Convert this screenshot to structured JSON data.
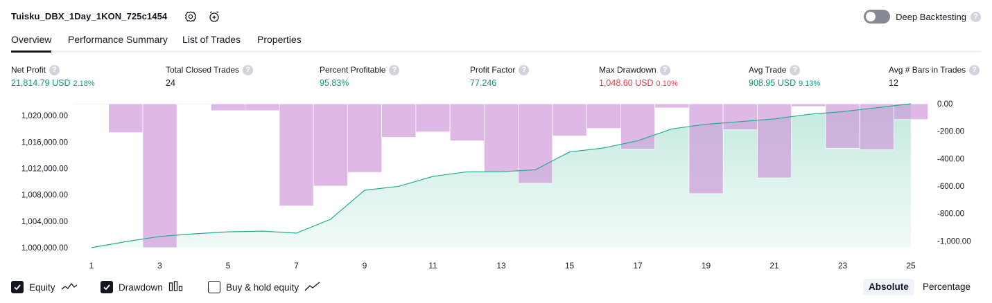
{
  "header": {
    "strategy_name": "Tuisku_DBX_1Day_1KON_725c1454",
    "settings_icon": "gear-icon",
    "alert_icon": "alarm-clock-plus-icon",
    "toggle_label": "Deep Backtesting",
    "toggle_on": false,
    "help_glyph": "?"
  },
  "tabs": [
    {
      "label": "Overview",
      "active": true
    },
    {
      "label": "Performance Summary",
      "active": false
    },
    {
      "label": "List of Trades",
      "active": false
    },
    {
      "label": "Properties",
      "active": false
    }
  ],
  "metrics": [
    {
      "label": "Net Profit",
      "value": "21,814.79 USD",
      "pct": "2.18%",
      "tone": "green"
    },
    {
      "label": "Total Closed Trades",
      "value": "24",
      "pct": "",
      "tone": "neutral"
    },
    {
      "label": "Percent Profitable",
      "value": "95.83%",
      "pct": "",
      "tone": "green"
    },
    {
      "label": "Profit Factor",
      "value": "77.246",
      "pct": "",
      "tone": "green"
    },
    {
      "label": "Max Drawdown",
      "value": "1,048.60 USD",
      "pct": "0.10%",
      "tone": "red"
    },
    {
      "label": "Avg Trade",
      "value": "908.95 USD",
      "pct": "9.13%",
      "tone": "green"
    },
    {
      "label": "Avg # Bars in Trades",
      "value": "12",
      "pct": "",
      "tone": "neutral"
    }
  ],
  "chart_data": {
    "type": "area",
    "x": [
      1,
      2,
      3,
      4,
      5,
      6,
      7,
      8,
      9,
      10,
      11,
      12,
      13,
      14,
      15,
      16,
      17,
      18,
      19,
      20,
      21,
      22,
      23,
      24,
      25
    ],
    "x_ticks": [
      "1",
      "3",
      "5",
      "7",
      "9",
      "11",
      "13",
      "15",
      "17",
      "19",
      "21",
      "23",
      "25"
    ],
    "series": [
      {
        "axis": "left",
        "style": "area",
        "color": "#22ab94",
        "values": [
          1000000,
          1000900,
          1001700,
          1002100,
          1002400,
          1002500,
          1002200,
          1004300,
          1008700,
          1009300,
          1010800,
          1011500,
          1011500,
          1011800,
          1014500,
          1015100,
          1016200,
          1018000,
          1018700,
          1019100,
          1019500,
          1020200,
          1020600,
          1021200,
          1021800
        ]
      },
      {
        "axis": "right",
        "style": "bar",
        "color": "#ce93d8",
        "values": [
          0,
          -210,
          -1048.6,
          0,
          -50,
          -50,
          -745,
          -600,
          -500,
          -245,
          -205,
          -270,
          -495,
          -580,
          -235,
          -180,
          -330,
          -30,
          -655,
          -190,
          -540,
          -20,
          -325,
          -335,
          -115
        ]
      }
    ],
    "left_ticks": [
      "1,000,000.00",
      "1,004,000.00",
      "1,008,000.00",
      "1,012,000.00",
      "1,016,000.00",
      "1,020,000.00"
    ],
    "left_range": [
      1000000,
      1021800
    ],
    "right_ticks": [
      "0.00",
      "-200.00",
      "-400.00",
      "-600.00",
      "-800.00",
      "-1,000.00"
    ],
    "right_range": [
      -1048.6,
      0
    ],
    "grid": false
  },
  "footer": {
    "checkboxes": [
      {
        "label": "Equity",
        "checked": true,
        "icon": "equity-line-icon"
      },
      {
        "label": "Drawdown",
        "checked": true,
        "icon": "drawdown-bars-icon"
      },
      {
        "label": "Buy & hold equity",
        "checked": false,
        "icon": "buy-hold-line-icon"
      }
    ],
    "modes": [
      {
        "label": "Absolute",
        "active": true
      },
      {
        "label": "Percentage",
        "active": false
      }
    ]
  }
}
